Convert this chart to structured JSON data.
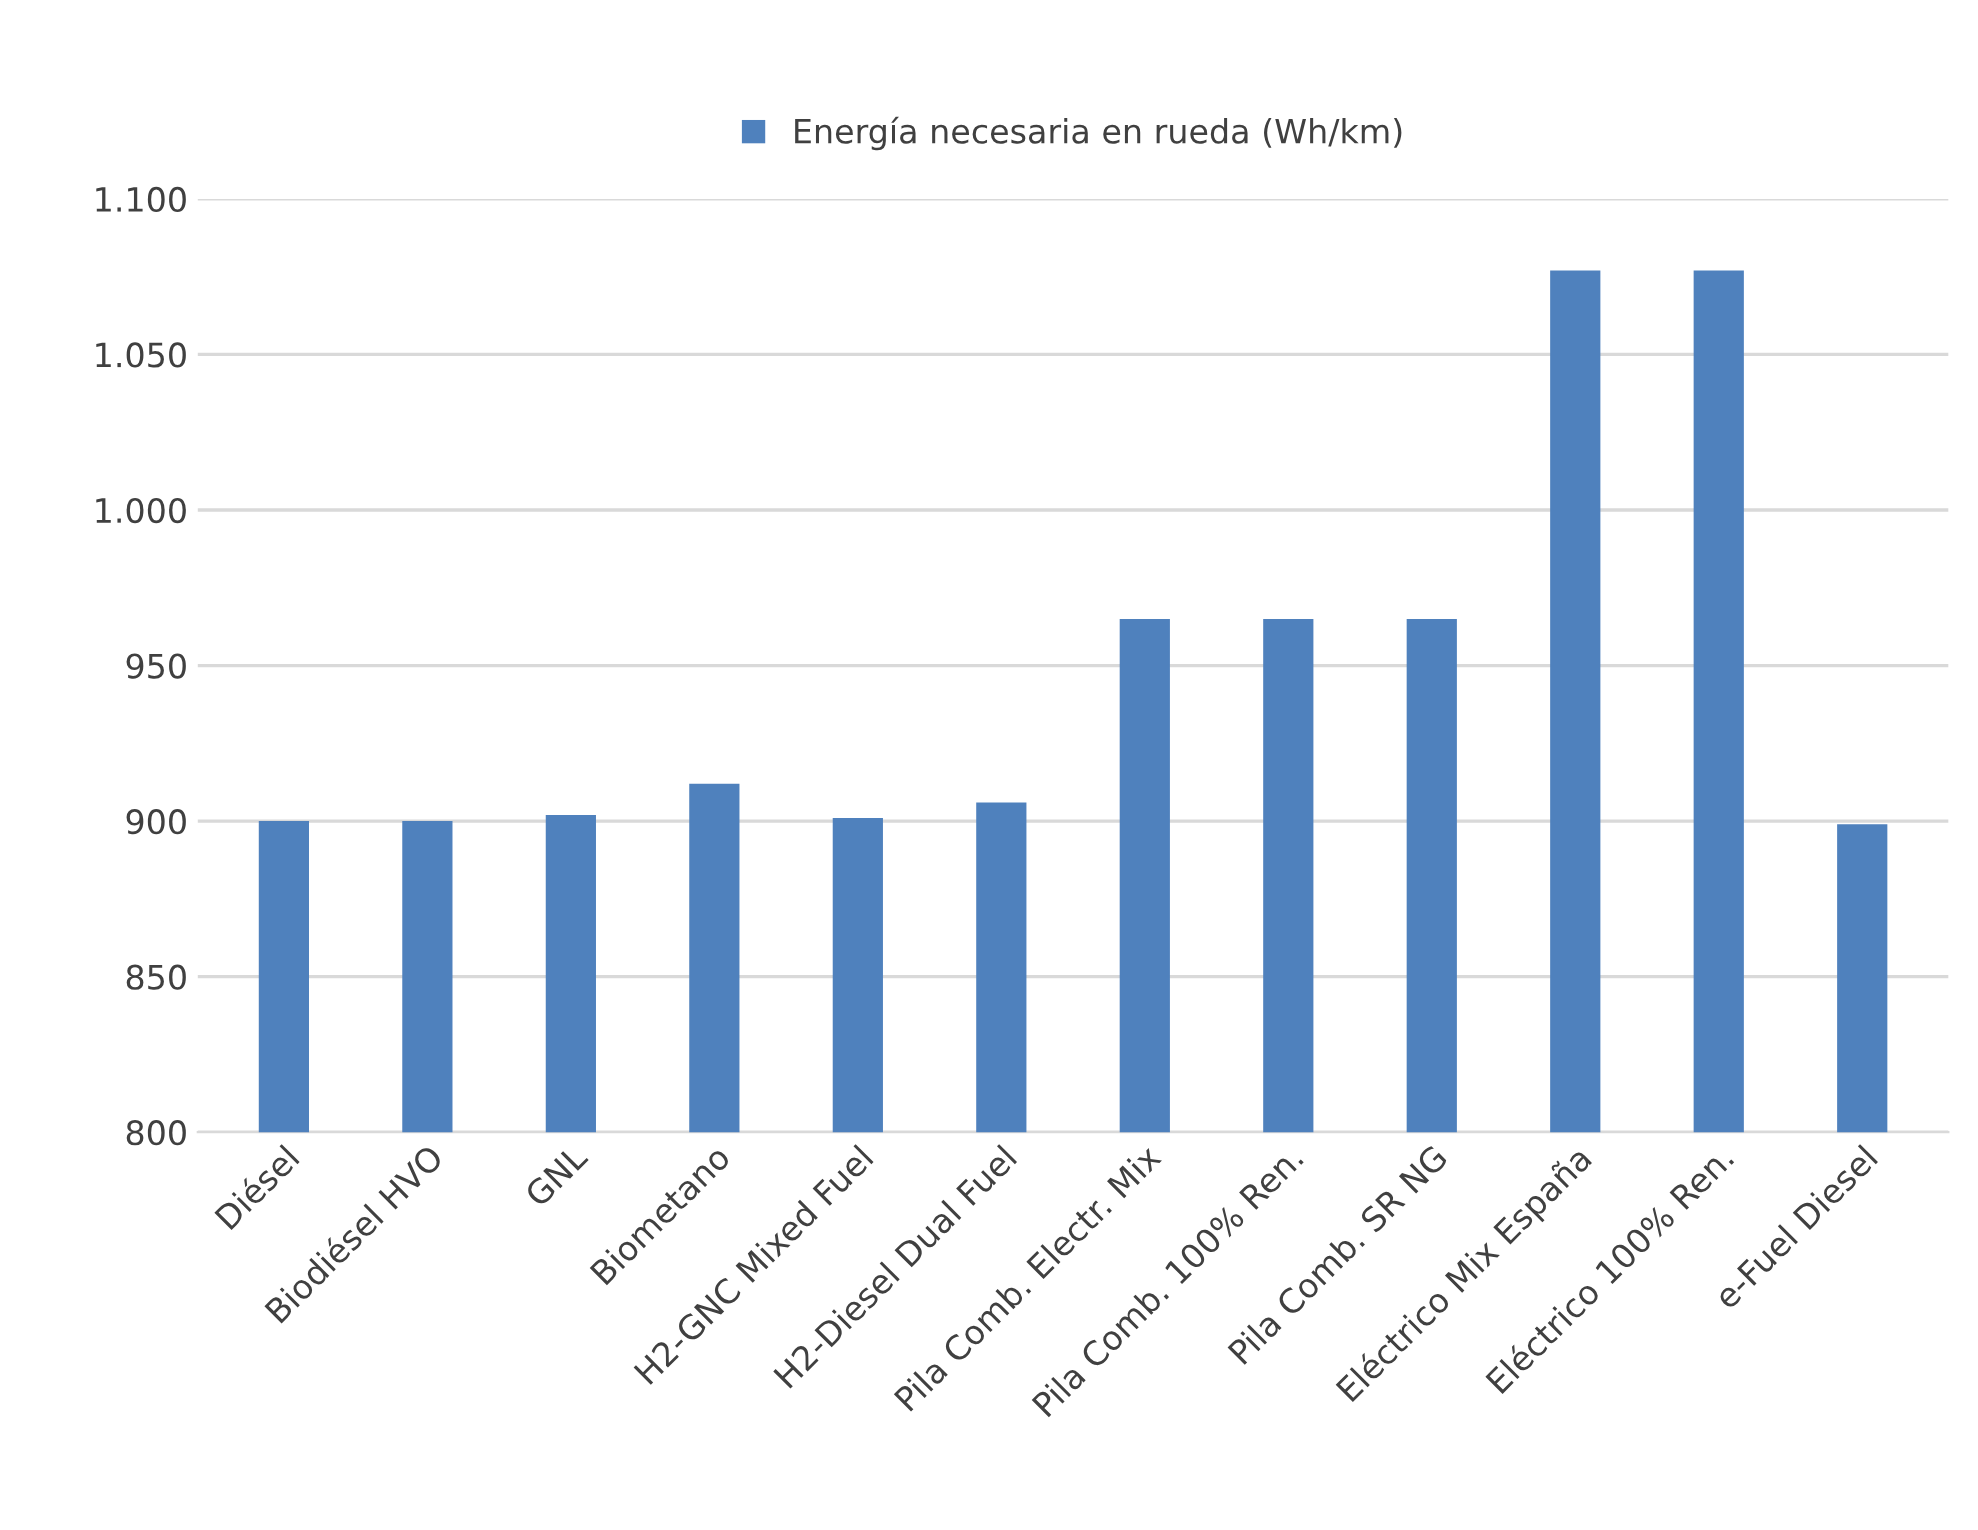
{
  "chart_data": {
    "type": "bar",
    "categories": [
      "Diésel",
      "Biodiésel HVO",
      "GNL",
      "Biometano",
      "H2-GNC Mixed Fuel",
      "H2-Diesel Dual Fuel",
      "Pila Comb. Electr. Mix",
      "Pila Comb. 100% Ren.",
      "Pila Comb. SR NG",
      "Eléctrico Mix España",
      "Eléctrico 100% Ren.",
      "e-Fuel Diesel"
    ],
    "series": [
      {
        "name": "Energía necesaria en rueda (Wh/km)",
        "color": "#4f81bd",
        "values": [
          900,
          900,
          902,
          912,
          901,
          906,
          965,
          965,
          965,
          1077,
          1077,
          899
        ]
      }
    ],
    "ylim": [
      800,
      1100
    ],
    "yticks": [
      800,
      850,
      900,
      950,
      {
        "value": 1000,
        "label": "1.000"
      },
      {
        "value": 1050,
        "label": "1.050"
      },
      {
        "value": 1100,
        "label": "1.100"
      }
    ],
    "grid": "y",
    "legend": "top"
  }
}
